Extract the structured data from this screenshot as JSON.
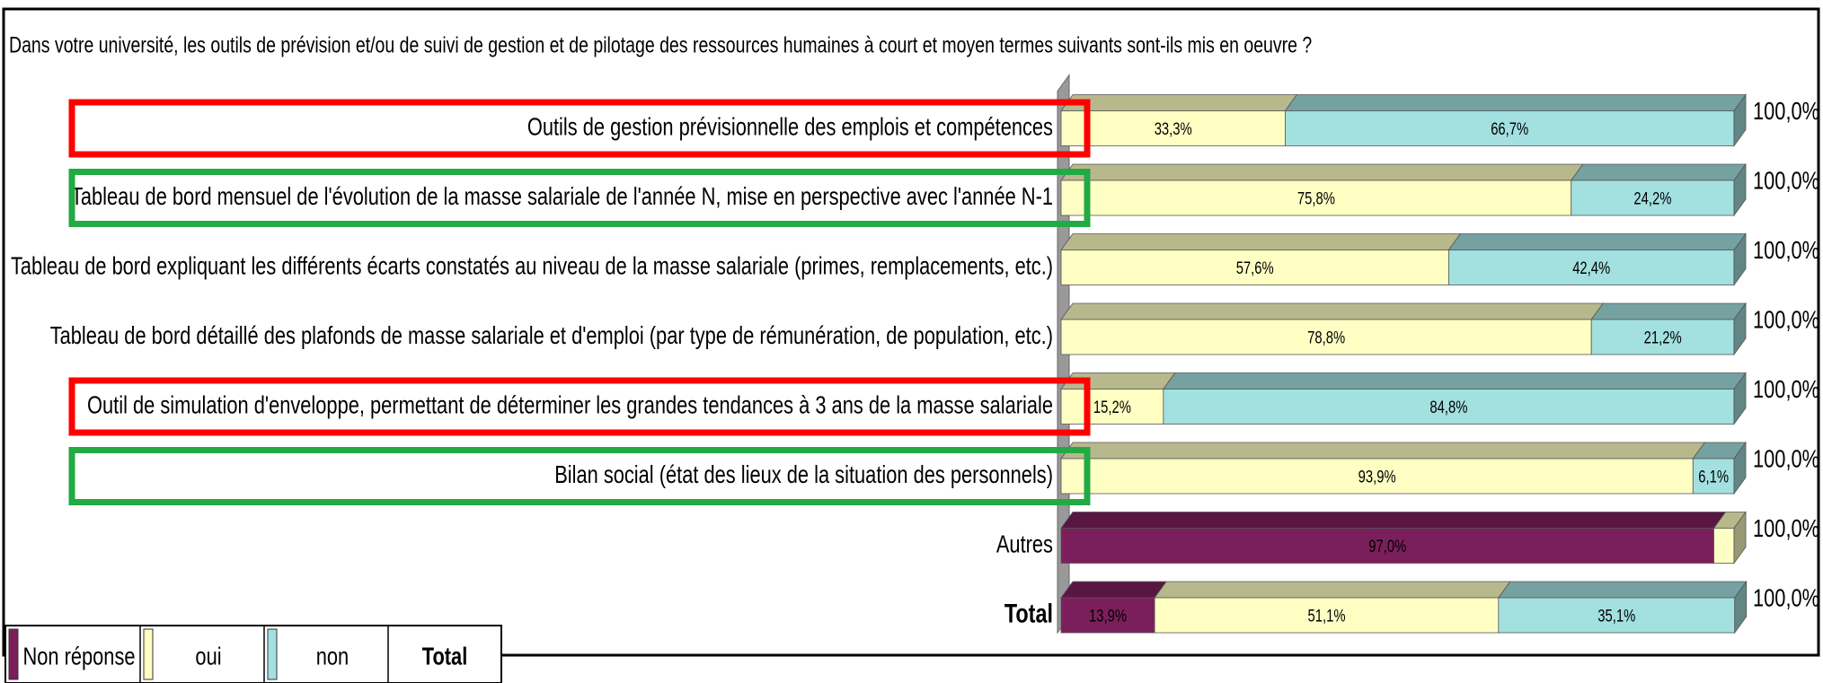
{
  "chart_data": {
    "type": "stacked-bar-3d",
    "title": "Dans votre université, les outils de prévision et/ou de suivi de gestion et de pilotage des ressources humaines à court et moyen termes suivants sont-ils mis en oeuvre ?",
    "categories": [
      "Outils de gestion prévisionnelle des emplois et compétences",
      "Tableau de bord mensuel de l'évolution de la masse salariale de l'année N, mise en perspective avec l'année N-1",
      "Tableau de bord expliquant les différents écarts constatés au niveau de la masse salariale (primes, remplacements, etc.)",
      "Tableau de bord détaillé des plafonds de masse salariale et d'emploi (par type de rémunération, de population, etc.)",
      "Outil de simulation d'enveloppe, permettant de déterminer les grandes tendances à 3 ans de la masse salariale",
      "Bilan social (état des lieux de la situation des personnels)",
      "Autres",
      "Total"
    ],
    "bold_categories": [
      "Total"
    ],
    "series": [
      {
        "name": "Non réponse",
        "color": "#7b1f5c",
        "values": [
          0,
          0,
          0,
          0,
          0,
          0,
          97.0,
          13.9
        ],
        "value_labels": [
          null,
          null,
          null,
          null,
          null,
          null,
          "97,0%",
          "13,9%"
        ]
      },
      {
        "name": "oui",
        "color": "#ffffc4",
        "values": [
          33.3,
          75.8,
          57.6,
          78.8,
          15.2,
          93.9,
          3.0,
          51.1
        ],
        "value_labels": [
          "33,3%",
          "75,8%",
          "57,6%",
          "78,8%",
          "15,2%",
          "93,9%",
          null,
          "51,1%"
        ]
      },
      {
        "name": "non",
        "color": "#a3e0e0",
        "values": [
          66.7,
          24.2,
          42.4,
          21.2,
          84.8,
          6.1,
          0,
          35.1
        ],
        "value_labels": [
          "66,7%",
          "24,2%",
          "42,4%",
          "21,2%",
          "84,8%",
          "6,1%",
          null,
          "35,1%"
        ]
      }
    ],
    "totals": [
      100,
      100,
      100,
      100,
      100,
      100,
      100,
      100
    ],
    "total_labels": [
      "100,0%",
      "100,0%",
      "100,0%",
      "100,0%",
      "100,0%",
      "100,0%",
      "100,0%",
      "100,0%"
    ],
    "legend_total_label": "Total",
    "xlim": [
      0,
      100
    ],
    "highlights": [
      {
        "row": 0,
        "color": "#ff0000"
      },
      {
        "row": 1,
        "color": "#22aa44"
      },
      {
        "row": 4,
        "color": "#ff0000"
      },
      {
        "row": 5,
        "color": "#22aa44"
      }
    ]
  }
}
